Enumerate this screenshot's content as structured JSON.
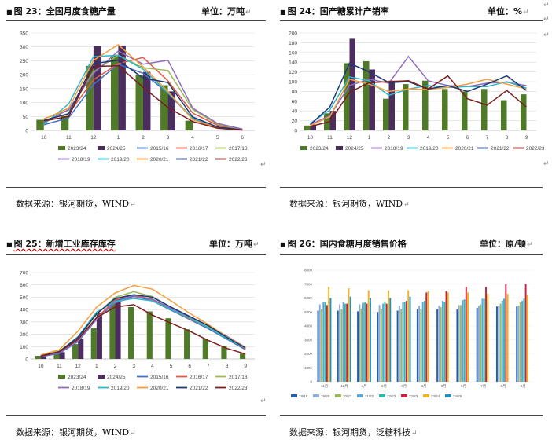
{
  "page": {
    "para_mark": "↵",
    "margin_mark": "↵"
  },
  "charts_meta": [
    {
      "title": "图 23：全国月度食糖产量",
      "unit": "单位：万吨",
      "source": "数据来源：银河期货，WIND"
    },
    {
      "title": "图 24：国产糖累计产销率",
      "unit": "单位：%",
      "source": "数据来源：银河期货，WIND"
    },
    {
      "title": "图 25：新增工业库存库存",
      "unit": "单位：万吨",
      "source": "数据来源：银河期货，WIND"
    },
    {
      "title": "图 26：国内食糖月度销售价格",
      "unit": "单位：原/顿",
      "source": "数据来源：银河期货，泛糖科技"
    }
  ],
  "chart_data": [
    {
      "type": "bar",
      "categories": [
        "10",
        "11",
        "12",
        "1",
        "2",
        "3",
        "4",
        "5",
        "6"
      ],
      "ylim": [
        0,
        350
      ],
      "yticks": [
        0,
        50,
        100,
        150,
        200,
        250,
        300,
        350
      ],
      "grid": true,
      "legend": "bottom",
      "bars": [
        {
          "name": "2023/24",
          "color": "#4f7a28",
          "values": [
            38,
            52,
            232,
            268,
            198,
            162,
            35,
            0,
            0
          ]
        },
        {
          "name": "2024/25",
          "color": "#4b2d5e",
          "values": [
            0,
            0,
            302,
            305,
            210,
            140,
            0,
            0,
            0
          ]
        }
      ],
      "series": [
        {
          "name": "2015/16",
          "color": "#4472c4",
          "values": [
            20,
            45,
            165,
            238,
            205,
            135,
            40,
            10,
            2
          ]
        },
        {
          "name": "2016/17",
          "color": "#e05a47",
          "values": [
            35,
            60,
            182,
            240,
            262,
            178,
            62,
            18,
            3
          ]
        },
        {
          "name": "2017/18",
          "color": "#9bbb59",
          "values": [
            42,
            72,
            210,
            270,
            225,
            215,
            75,
            22,
            4
          ]
        },
        {
          "name": "2018/19",
          "color": "#8e6bbf",
          "values": [
            28,
            75,
            205,
            285,
            238,
            252,
            80,
            25,
            5
          ]
        },
        {
          "name": "2019/20",
          "color": "#31b7c7",
          "values": [
            22,
            95,
            265,
            270,
            220,
            135,
            45,
            12,
            2
          ]
        },
        {
          "name": "2020/21",
          "color": "#f59d3d",
          "values": [
            40,
            80,
            252,
            308,
            228,
            140,
            38,
            10,
            2
          ]
        },
        {
          "name": "2021/22",
          "color": "#1f3a73",
          "values": [
            36,
            60,
            240,
            252,
            188,
            172,
            48,
            12,
            2
          ]
        },
        {
          "name": "2022/23",
          "color": "#7a1f1f",
          "values": [
            34,
            50,
            230,
            232,
            155,
            82,
            32,
            8,
            1
          ]
        }
      ]
    },
    {
      "type": "bar",
      "categories": [
        "10",
        "11",
        "12",
        "1",
        "2",
        "3",
        "4",
        "5",
        "6",
        "7",
        "8",
        "9"
      ],
      "ylim": [
        0,
        200
      ],
      "yticks": [
        0,
        20,
        40,
        60,
        80,
        100,
        120,
        140,
        160,
        180,
        200
      ],
      "grid": true,
      "legend": "bottom",
      "bars": [
        {
          "name": "2023/24",
          "color": "#4f7a28",
          "values": [
            10,
            35,
            138,
            142,
            65,
            95,
            102,
            85,
            80,
            85,
            62,
            74
          ]
        },
        {
          "name": "2024/25",
          "color": "#4b2d5e",
          "values": [
            12,
            40,
            188,
            125,
            102,
            0,
            0,
            0,
            0,
            0,
            0,
            0
          ]
        }
      ],
      "series": [
        {
          "name": "2018/19",
          "color": "#8e6bbf",
          "values": [
            12,
            30,
            92,
            105,
            97,
            152,
            102,
            92,
            90,
            97,
            99,
            92
          ]
        },
        {
          "name": "2019/20",
          "color": "#31b7c7",
          "values": [
            14,
            42,
            110,
            102,
            72,
            85,
            92,
            88,
            90,
            90,
            100,
            87
          ]
        },
        {
          "name": "2020/21",
          "color": "#f59d3d",
          "values": [
            10,
            28,
            105,
            95,
            80,
            85,
            84,
            88,
            95,
            105,
            95,
            85
          ]
        },
        {
          "name": "2021/22",
          "color": "#1f3a73",
          "values": [
            12,
            48,
            138,
            120,
            98,
            100,
            85,
            92,
            80,
            95,
            112,
            82
          ]
        },
        {
          "name": "2022/23",
          "color": "#7a1f1f",
          "values": [
            8,
            18,
            78,
            98,
            100,
            102,
            85,
            112,
            65,
            52,
            82,
            48
          ]
        }
      ]
    },
    {
      "type": "bar",
      "categories": [
        "10",
        "11",
        "12",
        "1",
        "2",
        "3",
        "4",
        "5",
        "6",
        "7",
        "8",
        "9"
      ],
      "ylim": [
        0,
        700
      ],
      "yticks": [
        0,
        100,
        200,
        300,
        400,
        500,
        600,
        700
      ],
      "grid": true,
      "legend": "bottom",
      "bars": [
        {
          "name": "2023/24",
          "color": "#4f7a28",
          "values": [
            25,
            60,
            120,
            250,
            455,
            420,
            385,
            330,
            240,
            162,
            105,
            45
          ]
        },
        {
          "name": "2024/25",
          "color": "#4b2d5e",
          "values": [
            30,
            55,
            160,
            375,
            500,
            0,
            0,
            0,
            0,
            0,
            0,
            0
          ]
        }
      ],
      "series": [
        {
          "name": "2015/16",
          "color": "#4472c4",
          "values": [
            18,
            45,
            140,
            320,
            470,
            510,
            470,
            395,
            320,
            245,
            160,
            75
          ]
        },
        {
          "name": "2016/17",
          "color": "#e05a47",
          "values": [
            22,
            55,
            150,
            330,
            480,
            520,
            480,
            400,
            325,
            255,
            170,
            82
          ]
        },
        {
          "name": "2017/18",
          "color": "#9bbb59",
          "values": [
            28,
            65,
            170,
            360,
            500,
            545,
            505,
            420,
            340,
            265,
            175,
            90
          ]
        },
        {
          "name": "2018/19",
          "color": "#8e6bbf",
          "values": [
            20,
            50,
            145,
            320,
            455,
            505,
            485,
            410,
            340,
            270,
            185,
            95
          ]
        },
        {
          "name": "2019/20",
          "color": "#31b7c7",
          "values": [
            24,
            60,
            180,
            380,
            465,
            490,
            470,
            400,
            330,
            255,
            165,
            88
          ]
        },
        {
          "name": "2020/21",
          "color": "#f59d3d",
          "values": [
            32,
            75,
            225,
            420,
            535,
            595,
            565,
            470,
            370,
            280,
            180,
            95
          ]
        },
        {
          "name": "2021/22",
          "color": "#1f3a73",
          "values": [
            25,
            60,
            175,
            365,
            490,
            520,
            500,
            420,
            345,
            270,
            175,
            90
          ]
        },
        {
          "name": "2022/23",
          "color": "#7a1f1f",
          "values": [
            22,
            58,
            160,
            335,
            420,
            440,
            355,
            290,
            225,
            150,
            85,
            40
          ]
        }
      ]
    },
    {
      "type": "bar",
      "categories": [
        "11月",
        "12月",
        "1月",
        "2月",
        "3月",
        "4月",
        "5月",
        "6月",
        "7月",
        "8月",
        "9月"
      ],
      "ylim": [
        0,
        8000
      ],
      "yticks": [
        0,
        1000,
        2000,
        3000,
        4000,
        5000,
        6000,
        7000,
        8000
      ],
      "grid": true,
      "legend": "bottom",
      "series": [
        {
          "name": "18/19",
          "color": "#1f5fae",
          "values": [
            5100,
            5100,
            5050,
            5000,
            5100,
            5200,
            5200,
            5200,
            5300,
            5400,
            5400
          ]
        },
        {
          "name": "19/20",
          "color": "#8eaad6",
          "values": [
            5550,
            5550,
            5550,
            5500,
            5450,
            5450,
            5450,
            5500,
            5450,
            5450,
            5450
          ]
        },
        {
          "name": "20/21",
          "color": "#9bbb59",
          "values": [
            5200,
            5200,
            5250,
            5250,
            5200,
            5200,
            5350,
            5500,
            5550,
            5600,
            5700
          ]
        },
        {
          "name": "21/22",
          "color": "#5aa6d6",
          "values": [
            5700,
            5700,
            5650,
            5600,
            5700,
            5750,
            5800,
            5850,
            5950,
            5800,
            5800
          ]
        },
        {
          "name": "22/23",
          "color": "#2bb9b0",
          "values": [
            5700,
            5600,
            5700,
            5750,
            5750,
            5800,
            5750,
            5900,
            5950,
            5950,
            5950
          ]
        },
        {
          "name": "22/23",
          "color": "#c9213c",
          "values": [
            5500,
            5600,
            5600,
            5600,
            5800,
            6400,
            6500,
            6800,
            6800,
            7000,
            7000
          ]
        },
        {
          "name": "23/24",
          "color": "#f2b01e",
          "values": [
            6800,
            6700,
            6550,
            6550,
            6550,
            6500,
            6400,
            6400,
            6300,
            6300,
            6200
          ]
        },
        {
          "name": "24/25",
          "color": "#1f8fc4",
          "values": [
            6000,
            6100,
            6000,
            6000,
            6100,
            0,
            0,
            0,
            0,
            0,
            0
          ]
        }
      ]
    }
  ]
}
